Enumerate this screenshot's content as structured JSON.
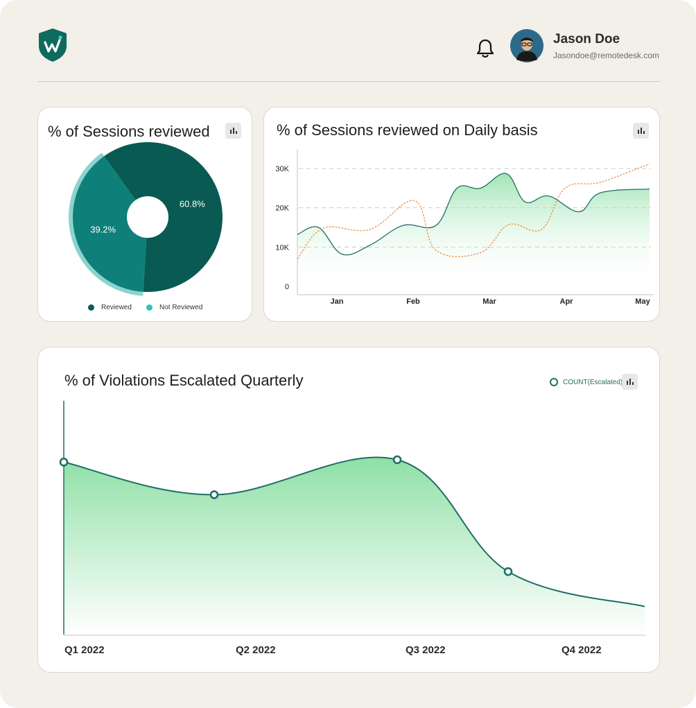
{
  "header": {
    "logo_icon": "shield-w-logo-icon",
    "bell_icon": "bell-icon",
    "user": {
      "name": "Jason Doe",
      "email": "Jasondoe@remotedesk.com"
    }
  },
  "colors": {
    "reviewed": "#095a52",
    "not_reviewed": "#0e8079",
    "accent_line": "#1f6e67",
    "area_green": "#8fe0a6",
    "orange_line": "#f08a3a",
    "background": "#f3efe9"
  },
  "pie_card": {
    "title": "% of Sessions reviewed",
    "legend": [
      {
        "label": "Reviewed",
        "color": "#0a5c55"
      },
      {
        "label": "Not Reviewed",
        "color": "#2ec4bb"
      }
    ],
    "chart_data": {
      "type": "pie",
      "slices": [
        {
          "label": "Reviewed",
          "value": 60.8,
          "display": "60.8%"
        },
        {
          "label": "Not Reviewed",
          "value": 39.2,
          "display": "39.2%"
        }
      ]
    }
  },
  "daily_card": {
    "title": "% of Sessions reviewed on Daily basis",
    "chart_data": {
      "type": "line",
      "x_ticks": [
        "Jan",
        "Feb",
        "Mar",
        "Apr",
        "May"
      ],
      "y_ticks": [
        "0",
        "10K",
        "20K",
        "30K"
      ],
      "ylim": [
        0,
        30000
      ],
      "grid": true,
      "series": [
        {
          "style": "solid-area",
          "color": "#1f6e67",
          "points": [
            [
              "2022-01-01",
              13200
            ],
            [
              "2022-01-10",
              15000
            ],
            [
              "2022-01-20",
              8200
            ],
            [
              "2022-02-01",
              10500
            ],
            [
              "2022-02-15",
              15500
            ],
            [
              "2022-03-01",
              15500
            ],
            [
              "2022-03-10",
              25000
            ],
            [
              "2022-03-20",
              25000
            ],
            [
              "2022-03-31",
              28700
            ],
            [
              "2022-04-08",
              21500
            ],
            [
              "2022-04-18",
              23000
            ],
            [
              "2022-05-01",
              19000
            ],
            [
              "2022-05-10",
              23800
            ],
            [
              "2022-05-31",
              24800
            ]
          ]
        },
        {
          "style": "dotted",
          "color": "#f08a3a",
          "points": [
            [
              "2022-01-01",
              7000
            ],
            [
              "2022-01-12",
              14800
            ],
            [
              "2022-02-01",
              14500
            ],
            [
              "2022-02-20",
              21800
            ],
            [
              "2022-03-01",
              9200
            ],
            [
              "2022-03-20",
              8600
            ],
            [
              "2022-04-01",
              15700
            ],
            [
              "2022-04-15",
              14500
            ],
            [
              "2022-04-25",
              25000
            ],
            [
              "2022-05-10",
              26500
            ],
            [
              "2022-05-31",
              31200
            ]
          ]
        }
      ]
    }
  },
  "quarterly_card": {
    "title": "% of Violations Escalated Quarterly",
    "legend_label": "COUNT(Escalated)",
    "chart_data": {
      "type": "area",
      "categories": [
        "Q1 2022",
        "Q2 2022",
        "Q3 2022",
        "Q4 2022"
      ],
      "series": [
        {
          "name": "COUNT(Escalated)",
          "color": "#1f6e67",
          "points": [
            [
              "Q1 2022",
              74
            ],
            [
              "Q1–Q2",
              60
            ],
            [
              "Q2–Q3",
              75
            ],
            [
              "Q3 2022",
              27
            ],
            [
              "Q4 2022",
              12
            ]
          ]
        }
      ],
      "ylim": [
        0,
        100
      ]
    }
  }
}
